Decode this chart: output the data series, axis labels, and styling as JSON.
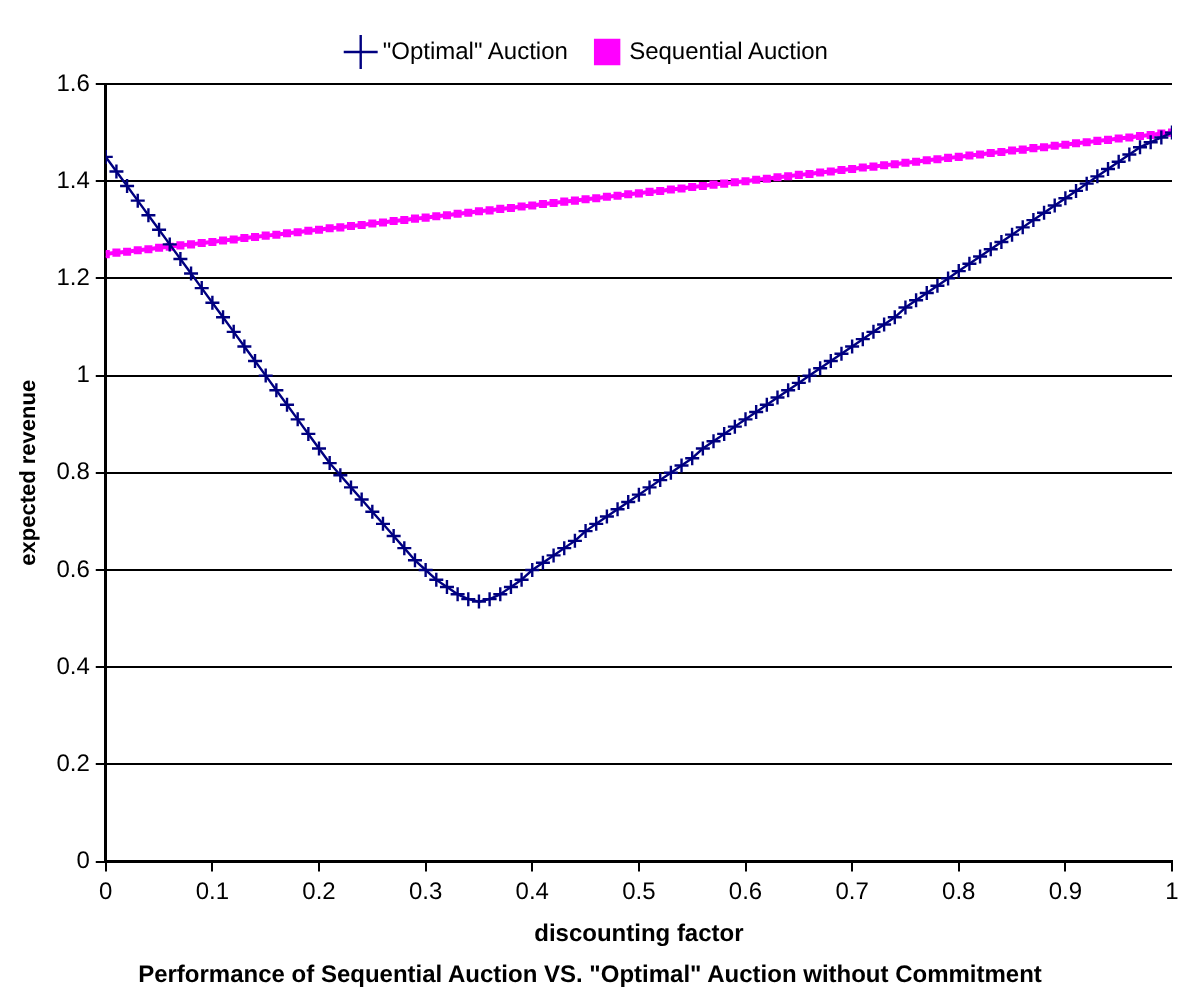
{
  "chart_data": {
    "type": "line",
    "title": "Performance of Sequential Auction VS. \"Optimal\" Auction without Commitment",
    "xlabel": "discounting factor",
    "ylabel": "expected revenue",
    "x": [
      0,
      0.01,
      0.02,
      0.03,
      0.04,
      0.05,
      0.06,
      0.07,
      0.08,
      0.09,
      0.1,
      0.11,
      0.12,
      0.13,
      0.14,
      0.15,
      0.16,
      0.17,
      0.18,
      0.19,
      0.2,
      0.21,
      0.22,
      0.23,
      0.24,
      0.25,
      0.26,
      0.27,
      0.28,
      0.29,
      0.3,
      0.31,
      0.32,
      0.33,
      0.34,
      0.35,
      0.36,
      0.37,
      0.38,
      0.39,
      0.4,
      0.41,
      0.42,
      0.43,
      0.44,
      0.45,
      0.46,
      0.47,
      0.48,
      0.49,
      0.5,
      0.51,
      0.52,
      0.53,
      0.54,
      0.55,
      0.56,
      0.57,
      0.58,
      0.59,
      0.6,
      0.61,
      0.62,
      0.63,
      0.64,
      0.65,
      0.66,
      0.67,
      0.68,
      0.69,
      0.7,
      0.71,
      0.72,
      0.73,
      0.74,
      0.75,
      0.76,
      0.77,
      0.78,
      0.79,
      0.8,
      0.81,
      0.82,
      0.83,
      0.84,
      0.85,
      0.86,
      0.87,
      0.88,
      0.89,
      0.9,
      0.91,
      0.92,
      0.93,
      0.94,
      0.95,
      0.96,
      0.97,
      0.98,
      0.99,
      1
    ],
    "series": [
      {
        "name": "\"Optimal\" Auction",
        "color": "#000080",
        "marker": "cross",
        "values": [
          1.45,
          1.42,
          1.39,
          1.36,
          1.33,
          1.3,
          1.27,
          1.24,
          1.21,
          1.18,
          1.15,
          1.12,
          1.09,
          1.06,
          1.03,
          1.0,
          0.97,
          0.94,
          0.91,
          0.88,
          0.85,
          0.82,
          0.795,
          0.77,
          0.745,
          0.72,
          0.695,
          0.67,
          0.645,
          0.62,
          0.6,
          0.58,
          0.565,
          0.55,
          0.54,
          0.535,
          0.54,
          0.55,
          0.565,
          0.58,
          0.6,
          0.615,
          0.63,
          0.645,
          0.66,
          0.68,
          0.695,
          0.71,
          0.725,
          0.74,
          0.755,
          0.77,
          0.785,
          0.8,
          0.815,
          0.83,
          0.85,
          0.865,
          0.88,
          0.895,
          0.91,
          0.925,
          0.94,
          0.955,
          0.97,
          0.985,
          1.0,
          1.015,
          1.03,
          1.045,
          1.06,
          1.075,
          1.09,
          1.105,
          1.12,
          1.14,
          1.155,
          1.17,
          1.185,
          1.2,
          1.215,
          1.23,
          1.245,
          1.26,
          1.275,
          1.29,
          1.305,
          1.32,
          1.335,
          1.35,
          1.365,
          1.38,
          1.395,
          1.41,
          1.425,
          1.44,
          1.455,
          1.47,
          1.48,
          1.49,
          1.5
        ]
      },
      {
        "name": "Sequential Auction",
        "color": "#ff00ff",
        "marker": "square",
        "values": [
          1.25,
          1.253,
          1.255,
          1.258,
          1.26,
          1.263,
          1.265,
          1.268,
          1.27,
          1.273,
          1.275,
          1.278,
          1.28,
          1.283,
          1.285,
          1.288,
          1.29,
          1.293,
          1.295,
          1.298,
          1.3,
          1.303,
          1.305,
          1.308,
          1.31,
          1.313,
          1.315,
          1.318,
          1.32,
          1.323,
          1.325,
          1.328,
          1.33,
          1.333,
          1.335,
          1.338,
          1.34,
          1.343,
          1.345,
          1.348,
          1.35,
          1.353,
          1.355,
          1.358,
          1.36,
          1.363,
          1.365,
          1.368,
          1.37,
          1.373,
          1.375,
          1.378,
          1.38,
          1.383,
          1.385,
          1.388,
          1.39,
          1.393,
          1.395,
          1.398,
          1.4,
          1.403,
          1.405,
          1.408,
          1.41,
          1.413,
          1.415,
          1.418,
          1.42,
          1.423,
          1.425,
          1.428,
          1.43,
          1.433,
          1.435,
          1.438,
          1.44,
          1.443,
          1.445,
          1.448,
          1.45,
          1.453,
          1.455,
          1.458,
          1.46,
          1.463,
          1.465,
          1.468,
          1.47,
          1.473,
          1.475,
          1.478,
          1.48,
          1.483,
          1.485,
          1.488,
          1.49,
          1.493,
          1.495,
          1.498,
          1.5
        ]
      }
    ],
    "xlim": [
      0,
      1
    ],
    "xticks": [
      0,
      0.1,
      0.2,
      0.3,
      0.4,
      0.5,
      0.6,
      0.7,
      0.8,
      0.9,
      1
    ],
    "ylim": [
      0,
      1.6
    ],
    "yticks": [
      0,
      0.2,
      0.4,
      0.6,
      0.8,
      1,
      1.2,
      1.4,
      1.6
    ],
    "grid": "y",
    "legend": "top",
    "line_style": "solid"
  }
}
